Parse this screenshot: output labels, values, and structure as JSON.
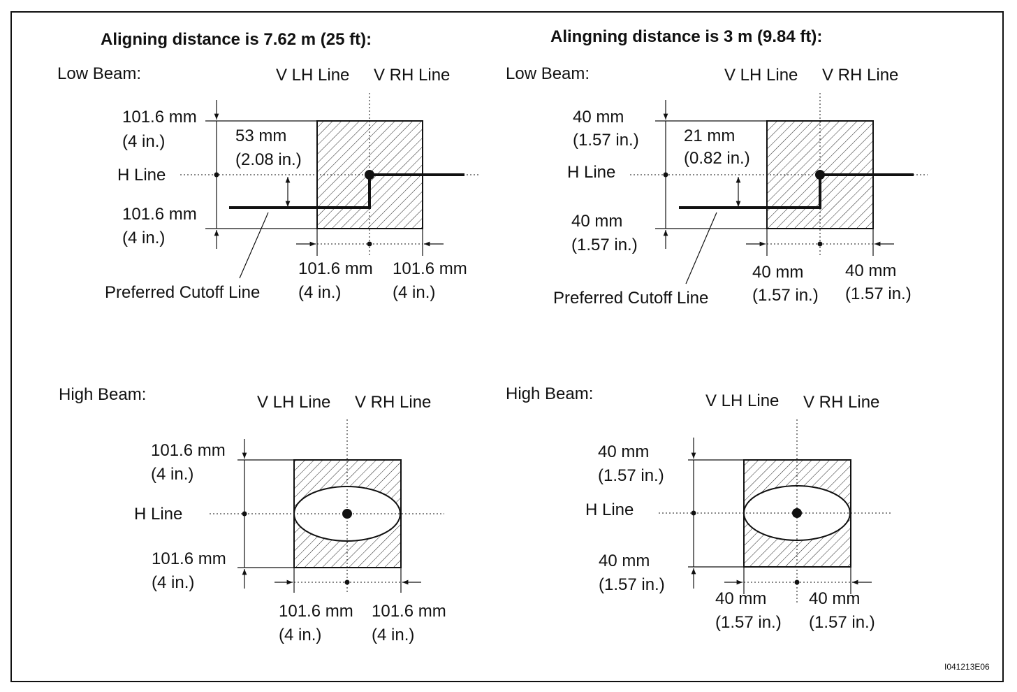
{
  "figure_code": "I041213E06",
  "left": {
    "title": "Aligning distance is 7.62 m (25 ft):",
    "low": {
      "label": "Low Beam:",
      "vlh": "V LH Line",
      "vrh": "V RH Line",
      "h_line": "H Line",
      "upper_mm": "101.6 mm",
      "upper_in": "(4 in.)",
      "lower_mm": "101.6 mm",
      "lower_in": "(4 in.)",
      "drop_mm": "53 mm",
      "drop_in": "(2.08 in.)",
      "left_mm": "101.6 mm",
      "left_in": "(4 in.)",
      "right_mm": "101.6 mm",
      "right_in": "(4 in.)",
      "cutoff": "Preferred Cutoff Line"
    },
    "high": {
      "label": "High Beam:",
      "vlh": "V LH Line",
      "vrh": "V RH Line",
      "h_line": "H Line",
      "upper_mm": "101.6 mm",
      "upper_in": "(4 in.)",
      "lower_mm": "101.6 mm",
      "lower_in": "(4 in.)",
      "left_mm": "101.6 mm",
      "left_in": "(4 in.)",
      "right_mm": "101.6 mm",
      "right_in": "(4 in.)"
    }
  },
  "right": {
    "title": "Alingning distance is 3 m (9.84 ft):",
    "low": {
      "label": "Low Beam:",
      "vlh": "V LH Line",
      "vrh": "V RH Line",
      "h_line": "H Line",
      "upper_mm": "40 mm",
      "upper_in": "(1.57 in.)",
      "lower_mm": "40 mm",
      "lower_in": "(1.57 in.)",
      "drop_mm": "21 mm",
      "drop_in": "(0.82 in.)",
      "left_mm": "40 mm",
      "left_in": "(1.57 in.)",
      "right_mm": "40 mm",
      "right_in": "(1.57 in.)",
      "cutoff": "Preferred Cutoff Line"
    },
    "high": {
      "label": "High Beam:",
      "vlh": "V LH Line",
      "vrh": "V RH Line",
      "h_line": "H Line",
      "upper_mm": "40 mm",
      "upper_in": "(1.57 in.)",
      "lower_mm": "40 mm",
      "lower_in": "(1.57 in.)",
      "left_mm": "40 mm",
      "left_in": "(1.57 in.)",
      "right_mm": "40 mm",
      "right_in": "(1.57 in.)"
    }
  }
}
